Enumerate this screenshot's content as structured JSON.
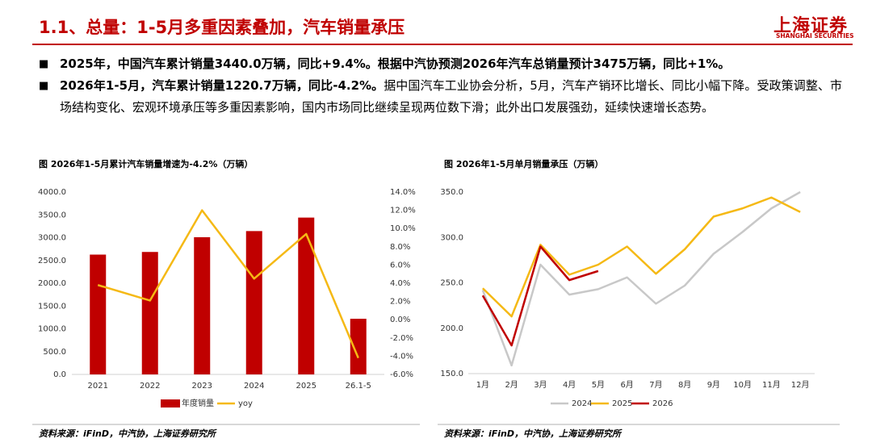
{
  "header": {
    "title": "1.1、总量：1-5月多重因素叠加，汽车销量承压",
    "logo": "上海证券",
    "logo_en": "SHANGHAI SECURITIES"
  },
  "bullets": [
    [
      {
        "text": "2025年，中国汽车累计销量3440.0万辆，同比+9.4%。根据中汽协预测2026年汽车总销量预计3475万辆，同比+1%。",
        "bold": true
      }
    ],
    [
      {
        "text": "2026年1-5月，汽车累计销量1220.7万辆，同比-4.2%。",
        "bold": true
      },
      {
        "text": "据中国汽车工业协会分析，5月，汽车产销环比增长、同比小幅下降。受政策调整、市场结构变化、宏观环境承压等多重因素影响，国内市场同比继续呈现两位数下滑；此外出口发展强劲，延续快速增长态势。",
        "bold": false
      }
    ]
  ],
  "chart_data": [
    {
      "type": "combo",
      "title": "图  2026年1-5月累计汽车销量增速为-4.2%（万辆）",
      "source": "资料来源：iFinD，中汽协，上海证券研究所",
      "categories": [
        "2021",
        "2022",
        "2023",
        "2024",
        "2025",
        "26.1-5"
      ],
      "series": [
        {
          "name": "年度销量",
          "type": "bar",
          "color": "#c00000",
          "values": [
            2628,
            2686,
            3009,
            3144,
            3440,
            1220.7
          ]
        },
        {
          "name": "yoy",
          "type": "line",
          "axis": "y2",
          "color": "#f5b915",
          "values": [
            3.8,
            2.1,
            12.0,
            4.5,
            9.4,
            -4.2
          ]
        }
      ],
      "ylim": [
        0,
        4000
      ],
      "yticks": [
        {
          "value": 0,
          "label": "0.0"
        },
        {
          "value": 500,
          "label": "500.0"
        },
        {
          "value": 1000,
          "label": "1000.0"
        },
        {
          "value": 1500,
          "label": "1500.0"
        },
        {
          "value": 2000,
          "label": "2000.0"
        },
        {
          "value": 2500,
          "label": "2500.0"
        },
        {
          "value": 3000,
          "label": "3000.0"
        },
        {
          "value": 3500,
          "label": "3500.0"
        },
        {
          "value": 4000,
          "label": "4000.0"
        }
      ],
      "y2lim": [
        -6,
        14
      ],
      "y2ticks": [
        {
          "value": -6,
          "label": "-6.0%"
        },
        {
          "value": -4,
          "label": "-4.0%"
        },
        {
          "value": -2,
          "label": "-2.0%"
        },
        {
          "value": 0,
          "label": "0.0%"
        },
        {
          "value": 2,
          "label": "2.0%"
        },
        {
          "value": 4,
          "label": "4.0%"
        },
        {
          "value": 6,
          "label": "6.0%"
        },
        {
          "value": 8,
          "label": "8.0%"
        },
        {
          "value": 10,
          "label": "10.0%"
        },
        {
          "value": 12,
          "label": "12.0%"
        },
        {
          "value": 14,
          "label": "14.0%"
        }
      ]
    },
    {
      "type": "line",
      "title": "图  2026年1-5月单月销量承压（万辆）",
      "source": "资料来源：iFinD，中汽协，上海证券研究所",
      "categories": [
        "1月",
        "2月",
        "3月",
        "4月",
        "5月",
        "6月",
        "7月",
        "8月",
        "9月",
        "10月",
        "11月",
        "12月"
      ],
      "series": [
        {
          "name": "2024",
          "color": "#c8c8c8",
          "values": [
            242,
            159,
            270,
            237,
            243,
            256,
            227,
            247,
            282,
            306,
            332,
            350
          ]
        },
        {
          "name": "2025",
          "color": "#f5b915",
          "values": [
            244,
            213,
            292,
            259,
            270,
            290,
            260,
            287,
            323,
            332,
            344,
            328
          ]
        },
        {
          "name": "2026",
          "color": "#c00000",
          "values": [
            236,
            181,
            290,
            253,
            263,
            null,
            null,
            null,
            null,
            null,
            null,
            null
          ]
        }
      ],
      "ylim": [
        150,
        350
      ],
      "yticks": [
        {
          "value": 150,
          "label": "150.0"
        },
        {
          "value": 200,
          "label": "200.0"
        },
        {
          "value": 250,
          "label": "250.0"
        },
        {
          "value": 300,
          "label": "300.0"
        },
        {
          "value": 350,
          "label": "350.0"
        }
      ]
    }
  ]
}
